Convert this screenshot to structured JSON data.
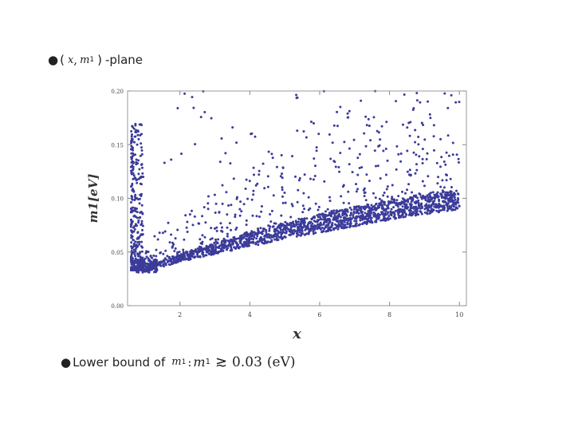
{
  "slide": {
    "bullet1": {
      "bullet": "●",
      "open": "(",
      "var_x": "x",
      "comma": ",",
      "var_m": "m",
      "sub": "1",
      "close": ")",
      "suffix": "-plane"
    },
    "bullet2": {
      "bullet": "●",
      "text": "Lower bound of",
      "var_m": "m",
      "sub": "1",
      "colon": ":",
      "var_m2": "m",
      "sub2": "1",
      "relation": "≳",
      "value": "0.03",
      "unit": "(eV)"
    }
  },
  "chart_data": {
    "type": "scatter",
    "xlabel": "x",
    "ylabel": "m1[eV]",
    "xlim": [
      0.5,
      10.2
    ],
    "ylim": [
      0.0,
      0.2
    ],
    "xticks": [
      2,
      4,
      6,
      8,
      10
    ],
    "yticks": [
      "0.00",
      "0.05",
      "0.10",
      "0.15",
      "0.20"
    ],
    "marker_color": "#3b3b9a",
    "frame_color": "#999999",
    "lower_envelope": [
      [
        0.9,
        0.033
      ],
      [
        1.0,
        0.032
      ],
      [
        1.5,
        0.036
      ],
      [
        2,
        0.041
      ],
      [
        3,
        0.048
      ],
      [
        4,
        0.055
      ],
      [
        5,
        0.062
      ],
      [
        6,
        0.068
      ],
      [
        7,
        0.074
      ],
      [
        8,
        0.08
      ],
      [
        9,
        0.085
      ],
      [
        10,
        0.09
      ]
    ],
    "upper_dense_envelope": [
      [
        1.0,
        0.036
      ],
      [
        1.5,
        0.042
      ],
      [
        2,
        0.048
      ],
      [
        3,
        0.058
      ],
      [
        4,
        0.068
      ],
      [
        5,
        0.077
      ],
      [
        6,
        0.085
      ],
      [
        7,
        0.092
      ],
      [
        8,
        0.098
      ],
      [
        9,
        0.103
      ],
      [
        10,
        0.108
      ]
    ],
    "vertical_branch": {
      "x_range": [
        0.6,
        0.95
      ],
      "y_range": [
        0.033,
        0.17
      ]
    },
    "sparse_scatter_max": 0.2
  }
}
